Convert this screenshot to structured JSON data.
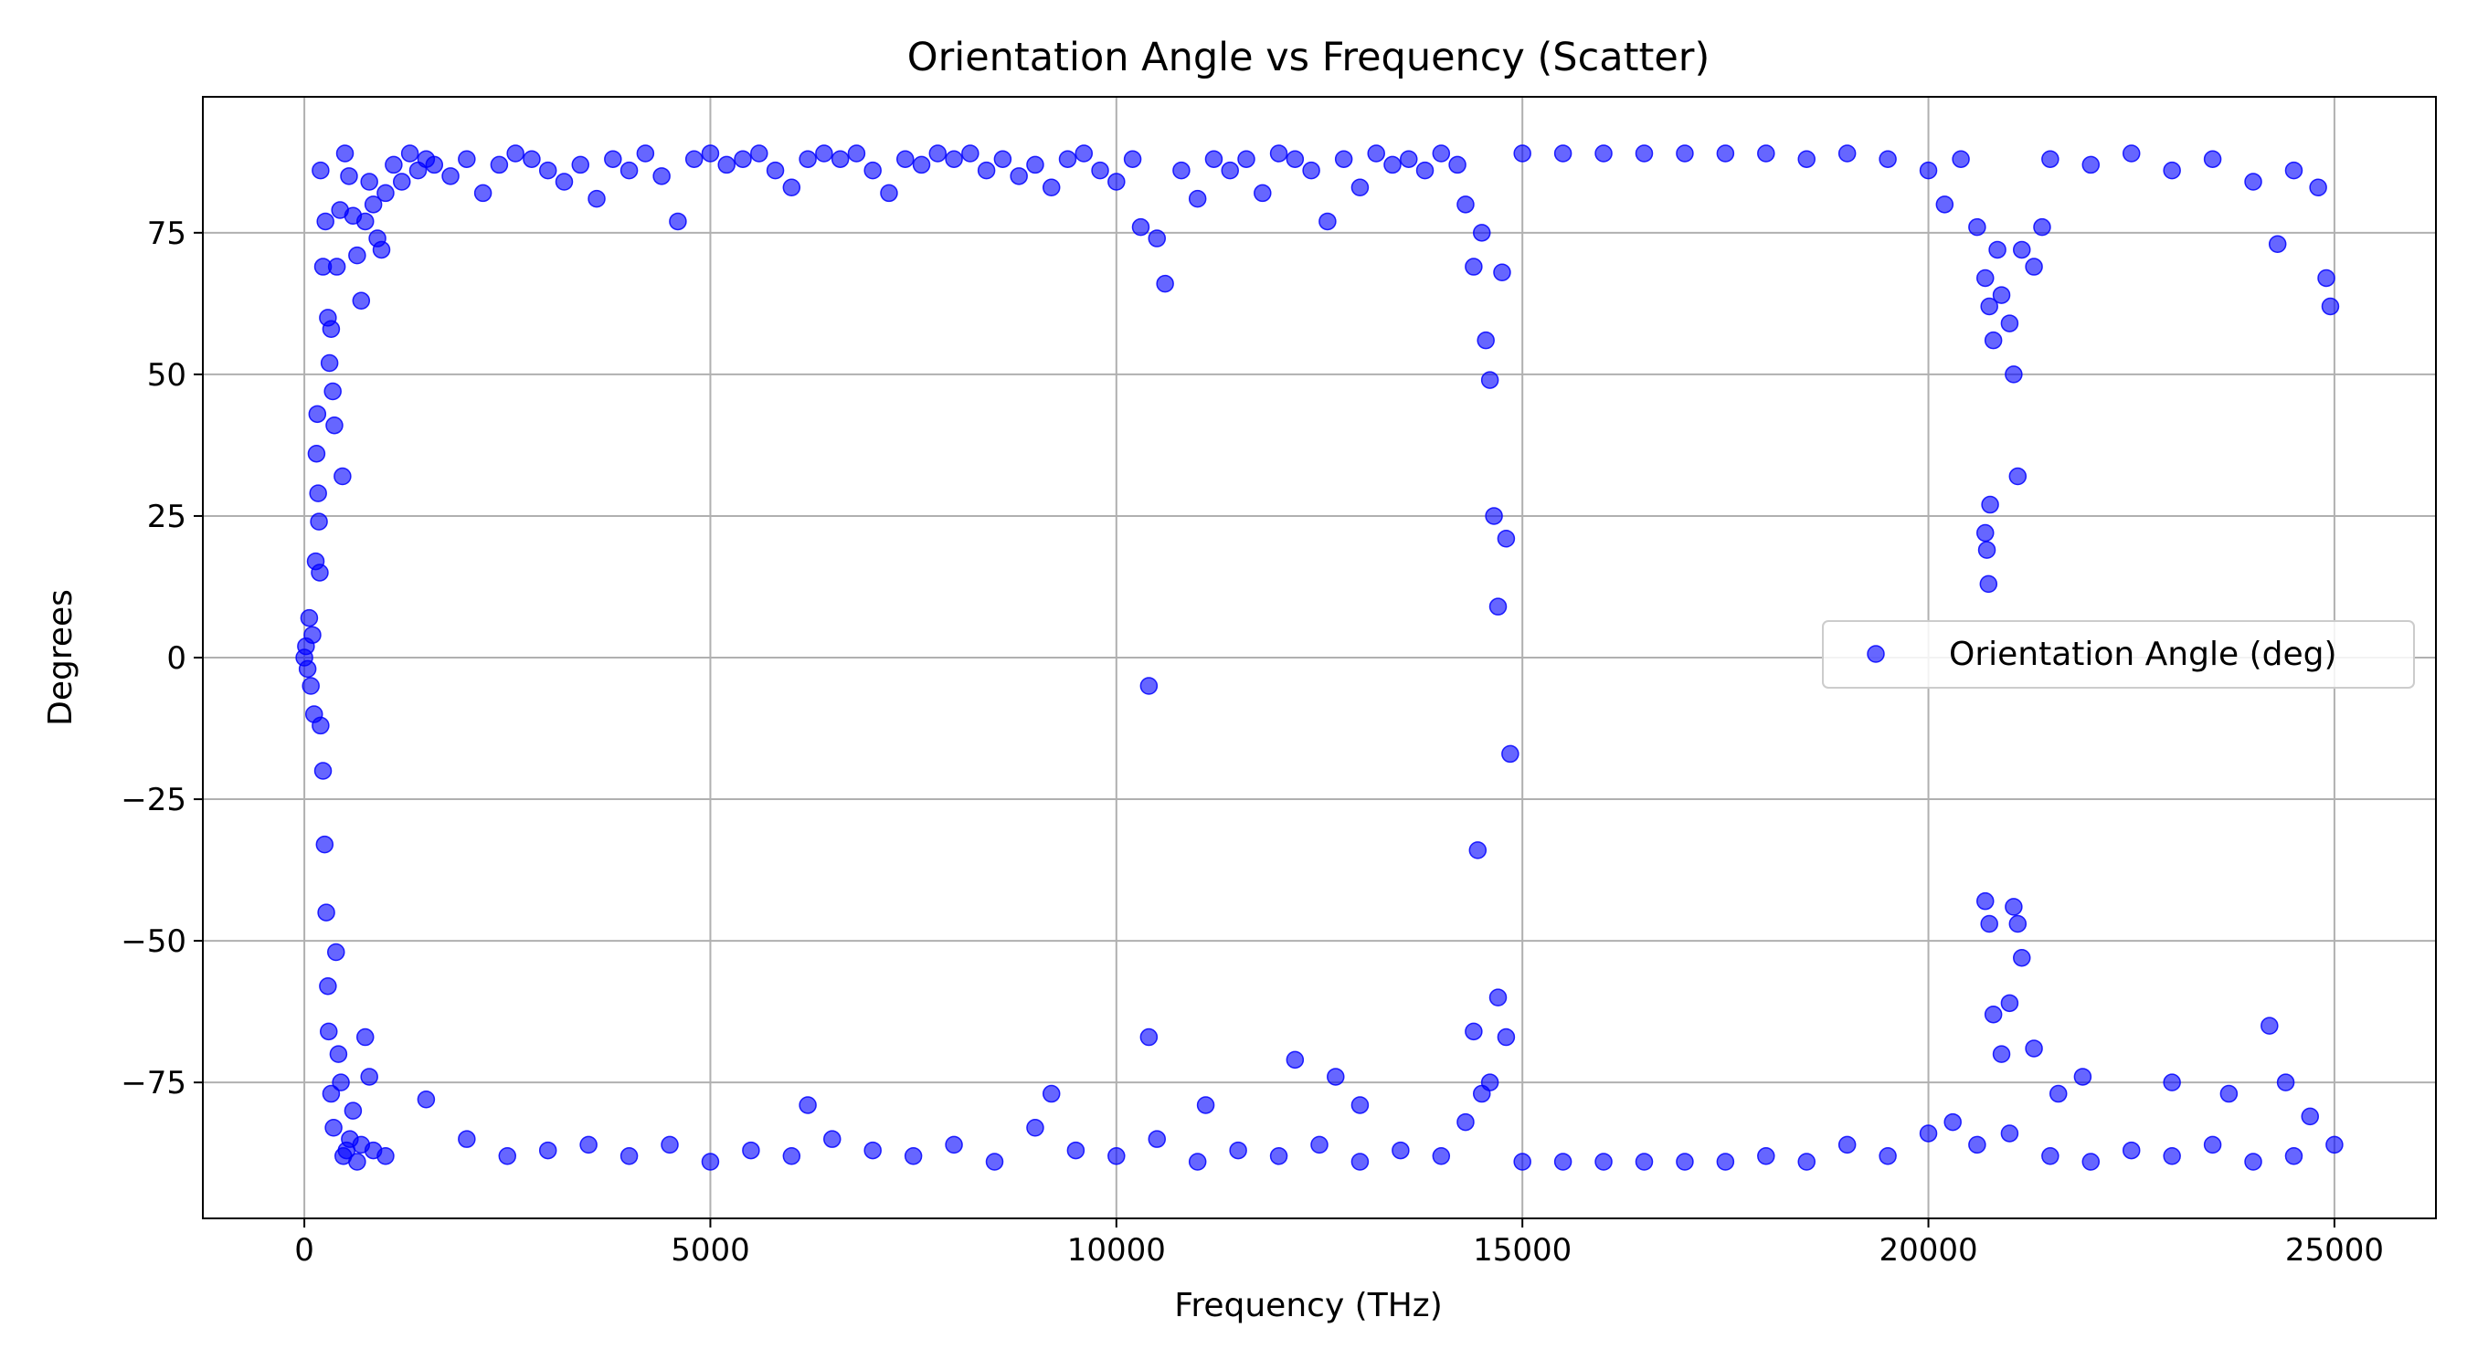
{
  "chart_data": {
    "type": "scatter",
    "title": "Orientation Angle vs Frequency (Scatter)",
    "xlabel": "Frequency (THz)",
    "ylabel": "Degrees",
    "xlim": [
      -1250,
      26250
    ],
    "ylim": [
      -99,
      99
    ],
    "xticks": [
      0,
      5000,
      10000,
      15000,
      20000,
      25000
    ],
    "xtick_labels": [
      "0",
      "5000",
      "10000",
      "15000",
      "20000",
      "25000"
    ],
    "yticks": [
      -75,
      -50,
      -25,
      0,
      25,
      50,
      75
    ],
    "ytick_labels": [
      "−75",
      "−50",
      "−25",
      "0",
      "25",
      "50",
      "75"
    ],
    "grid": true,
    "legend_position": "center-right",
    "color": "#0000ff",
    "series": [
      {
        "name": "Orientation Angle (deg)",
        "points": [
          [
            0,
            0
          ],
          [
            20,
            2
          ],
          [
            40,
            -2
          ],
          [
            60,
            7
          ],
          [
            80,
            -5
          ],
          [
            100,
            4
          ],
          [
            120,
            -10
          ],
          [
            140,
            17
          ],
          [
            150,
            36
          ],
          [
            160,
            43
          ],
          [
            170,
            29
          ],
          [
            180,
            24
          ],
          [
            190,
            15
          ],
          [
            200,
            86
          ],
          [
            230,
            69
          ],
          [
            260,
            77
          ],
          [
            290,
            60
          ],
          [
            310,
            52
          ],
          [
            330,
            58
          ],
          [
            350,
            47
          ],
          [
            370,
            41
          ],
          [
            400,
            69
          ],
          [
            440,
            79
          ],
          [
            470,
            32
          ],
          [
            200,
            -12
          ],
          [
            230,
            -20
          ],
          [
            250,
            -33
          ],
          [
            270,
            -45
          ],
          [
            290,
            -58
          ],
          [
            300,
            -66
          ],
          [
            330,
            -77
          ],
          [
            360,
            -83
          ],
          [
            390,
            -52
          ],
          [
            420,
            -70
          ],
          [
            450,
            -75
          ],
          [
            480,
            -88
          ],
          [
            520,
            -87
          ],
          [
            560,
            -85
          ],
          [
            600,
            -80
          ],
          [
            650,
            -89
          ],
          [
            700,
            -86
          ],
          [
            750,
            -67
          ],
          [
            800,
            -74
          ],
          [
            850,
            -87
          ],
          [
            500,
            89
          ],
          [
            550,
            85
          ],
          [
            600,
            78
          ],
          [
            650,
            71
          ],
          [
            700,
            63
          ],
          [
            750,
            77
          ],
          [
            800,
            84
          ],
          [
            850,
            80
          ],
          [
            900,
            74
          ],
          [
            950,
            72
          ],
          [
            1000,
            82
          ],
          [
            1100,
            87
          ],
          [
            1200,
            84
          ],
          [
            1300,
            89
          ],
          [
            1400,
            86
          ],
          [
            1500,
            88
          ],
          [
            1600,
            87
          ],
          [
            1800,
            85
          ],
          [
            2000,
            88
          ],
          [
            2200,
            82
          ],
          [
            2400,
            87
          ],
          [
            2600,
            89
          ],
          [
            2800,
            88
          ],
          [
            3000,
            86
          ],
          [
            3200,
            84
          ],
          [
            3400,
            87
          ],
          [
            3600,
            81
          ],
          [
            3800,
            88
          ],
          [
            4000,
            86
          ],
          [
            4200,
            89
          ],
          [
            4400,
            85
          ],
          [
            4600,
            77
          ],
          [
            4800,
            88
          ],
          [
            5000,
            89
          ],
          [
            5200,
            87
          ],
          [
            5400,
            88
          ],
          [
            5600,
            89
          ],
          [
            5800,
            86
          ],
          [
            6000,
            83
          ],
          [
            6200,
            88
          ],
          [
            6400,
            89
          ],
          [
            6600,
            88
          ],
          [
            6800,
            89
          ],
          [
            7000,
            86
          ],
          [
            7200,
            82
          ],
          [
            7400,
            88
          ],
          [
            7600,
            87
          ],
          [
            7800,
            89
          ],
          [
            8000,
            88
          ],
          [
            8200,
            89
          ],
          [
            8400,
            86
          ],
          [
            8600,
            88
          ],
          [
            8800,
            85
          ],
          [
            9000,
            87
          ],
          [
            9200,
            83
          ],
          [
            9400,
            88
          ],
          [
            9600,
            89
          ],
          [
            9800,
            86
          ],
          [
            10000,
            84
          ],
          [
            10200,
            88
          ],
          [
            10300,
            76
          ],
          [
            10500,
            74
          ],
          [
            10600,
            66
          ],
          [
            10800,
            86
          ],
          [
            11000,
            81
          ],
          [
            11200,
            88
          ],
          [
            11400,
            86
          ],
          [
            11600,
            88
          ],
          [
            11800,
            82
          ],
          [
            12000,
            89
          ],
          [
            12200,
            88
          ],
          [
            12400,
            86
          ],
          [
            12600,
            77
          ],
          [
            12800,
            88
          ],
          [
            13000,
            83
          ],
          [
            13200,
            89
          ],
          [
            13400,
            87
          ],
          [
            13600,
            88
          ],
          [
            13800,
            86
          ],
          [
            14000,
            89
          ],
          [
            14200,
            87
          ],
          [
            14300,
            80
          ],
          [
            14400,
            69
          ],
          [
            14500,
            75
          ],
          [
            14550,
            56
          ],
          [
            14600,
            49
          ],
          [
            14650,
            25
          ],
          [
            14700,
            9
          ],
          [
            14750,
            68
          ],
          [
            14800,
            21
          ],
          [
            14850,
            -17
          ],
          [
            14450,
            -34
          ],
          [
            14700,
            -60
          ],
          [
            14800,
            -67
          ],
          [
            14600,
            -75
          ],
          [
            15000,
            89
          ],
          [
            15500,
            89
          ],
          [
            16000,
            89
          ],
          [
            16500,
            89
          ],
          [
            17000,
            89
          ],
          [
            17500,
            89
          ],
          [
            18000,
            89
          ],
          [
            18500,
            88
          ],
          [
            19000,
            89
          ],
          [
            19500,
            88
          ],
          [
            20000,
            86
          ],
          [
            20200,
            80
          ],
          [
            20400,
            88
          ],
          [
            20600,
            76
          ],
          [
            20700,
            67
          ],
          [
            20750,
            62
          ],
          [
            20800,
            56
          ],
          [
            20850,
            72
          ],
          [
            20900,
            64
          ],
          [
            21000,
            59
          ],
          [
            21050,
            50
          ],
          [
            21100,
            32
          ],
          [
            21150,
            72
          ],
          [
            21300,
            69
          ],
          [
            21400,
            76
          ],
          [
            20700,
            22
          ],
          [
            20720,
            19
          ],
          [
            20740,
            13
          ],
          [
            20760,
            27
          ],
          [
            20700,
            -43
          ],
          [
            20750,
            -47
          ],
          [
            20800,
            -63
          ],
          [
            20900,
            -70
          ],
          [
            21000,
            -61
          ],
          [
            21050,
            -44
          ],
          [
            21100,
            -47
          ],
          [
            21150,
            -53
          ],
          [
            21300,
            -69
          ],
          [
            21600,
            -77
          ],
          [
            21900,
            -74
          ],
          [
            21500,
            88
          ],
          [
            22000,
            87
          ],
          [
            22500,
            89
          ],
          [
            23000,
            86
          ],
          [
            23500,
            88
          ],
          [
            24000,
            84
          ],
          [
            24300,
            73
          ],
          [
            24500,
            86
          ],
          [
            24800,
            83
          ],
          [
            24900,
            67
          ],
          [
            24950,
            62
          ],
          [
            10400,
            -5
          ],
          [
            10400,
            -67
          ],
          [
            12200,
            -71
          ],
          [
            12700,
            -74
          ],
          [
            13000,
            -79
          ],
          [
            9200,
            -77
          ],
          [
            11100,
            -79
          ],
          [
            14400,
            -66
          ],
          [
            23000,
            -75
          ],
          [
            23700,
            -77
          ],
          [
            24200,
            -65
          ],
          [
            24400,
            -75
          ],
          [
            24700,
            -81
          ],
          [
            1000,
            -88
          ],
          [
            1500,
            -78
          ],
          [
            2000,
            -85
          ],
          [
            2500,
            -88
          ],
          [
            3000,
            -87
          ],
          [
            3500,
            -86
          ],
          [
            4000,
            -88
          ],
          [
            4500,
            -86
          ],
          [
            5000,
            -89
          ],
          [
            5500,
            -87
          ],
          [
            6000,
            -88
          ],
          [
            6200,
            -79
          ],
          [
            6500,
            -85
          ],
          [
            7000,
            -87
          ],
          [
            7500,
            -88
          ],
          [
            8000,
            -86
          ],
          [
            8500,
            -89
          ],
          [
            9000,
            -83
          ],
          [
            9500,
            -87
          ],
          [
            10000,
            -88
          ],
          [
            10500,
            -85
          ],
          [
            11000,
            -89
          ],
          [
            11500,
            -87
          ],
          [
            12000,
            -88
          ],
          [
            12500,
            -86
          ],
          [
            13000,
            -89
          ],
          [
            13500,
            -87
          ],
          [
            14000,
            -88
          ],
          [
            14300,
            -82
          ],
          [
            14500,
            -77
          ],
          [
            15000,
            -89
          ],
          [
            15500,
            -89
          ],
          [
            16000,
            -89
          ],
          [
            16500,
            -89
          ],
          [
            17000,
            -89
          ],
          [
            17500,
            -89
          ],
          [
            18000,
            -88
          ],
          [
            18500,
            -89
          ],
          [
            19000,
            -86
          ],
          [
            19500,
            -88
          ],
          [
            20000,
            -84
          ],
          [
            20300,
            -82
          ],
          [
            20600,
            -86
          ],
          [
            21000,
            -84
          ],
          [
            21500,
            -88
          ],
          [
            22000,
            -89
          ],
          [
            22500,
            -87
          ],
          [
            23000,
            -88
          ],
          [
            23500,
            -86
          ],
          [
            24000,
            -89
          ],
          [
            24500,
            -88
          ],
          [
            25000,
            -86
          ]
        ]
      }
    ]
  }
}
